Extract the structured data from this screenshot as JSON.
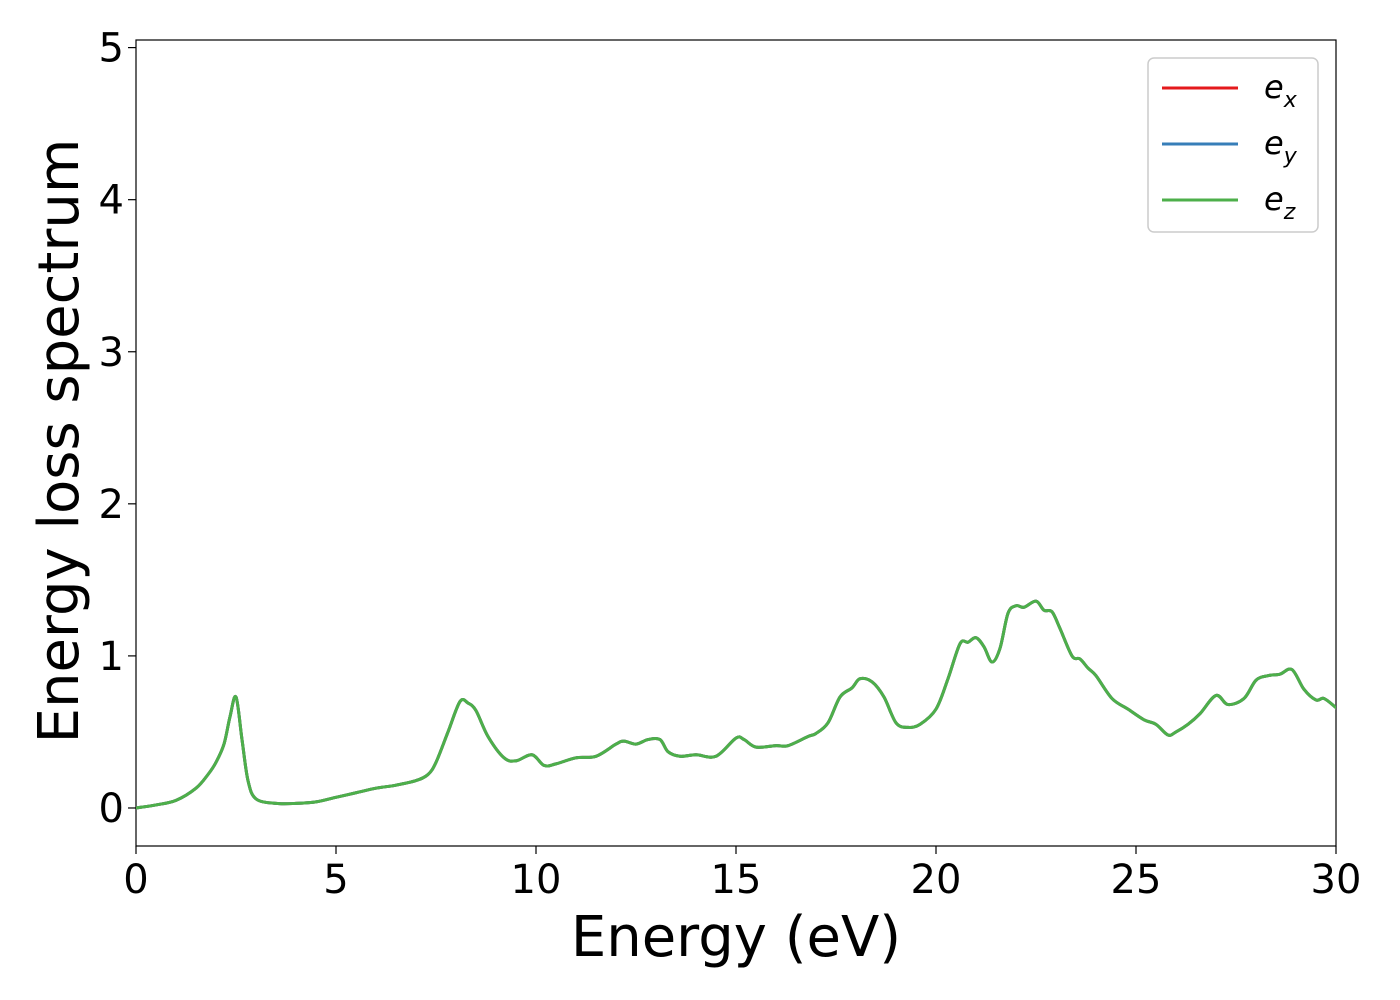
{
  "chart_data": {
    "type": "line",
    "xlabel": "Energy (eV)",
    "ylabel": "Energy loss spectrum",
    "xlim": [
      0,
      30
    ],
    "ylim": [
      -0.25,
      5.05
    ],
    "x_ticks": [
      0,
      5,
      10,
      15,
      20,
      25,
      30
    ],
    "y_ticks": [
      0,
      1,
      2,
      3,
      4,
      5
    ],
    "grid": false,
    "legend_position": "top-right",
    "series": [
      {
        "name": "e_x",
        "label_base": "e",
        "label_sub": "x",
        "color": "#e41a1c",
        "x": [
          0,
          0.5,
          1.0,
          1.5,
          1.8,
          2.0,
          2.2,
          2.35,
          2.5,
          2.65,
          2.8,
          3.0,
          3.5,
          4.0,
          4.5,
          5.0,
          5.5,
          6.0,
          6.5,
          7.0,
          7.3,
          7.5,
          7.8,
          8.1,
          8.3,
          8.5,
          8.8,
          9.2,
          9.5,
          9.9,
          10.2,
          10.5,
          11.0,
          11.5,
          12.0,
          12.2,
          12.5,
          12.8,
          13.1,
          13.3,
          13.6,
          14.0,
          14.5,
          15.0,
          15.2,
          15.5,
          16.0,
          16.3,
          16.8,
          17.0,
          17.3,
          17.6,
          17.9,
          18.1,
          18.4,
          18.7,
          19.0,
          19.3,
          19.6,
          20.0,
          20.3,
          20.6,
          20.8,
          21.0,
          21.2,
          21.4,
          21.6,
          21.8,
          22.0,
          22.2,
          22.5,
          22.7,
          22.9,
          23.1,
          23.4,
          23.6,
          23.8,
          24.0,
          24.4,
          24.8,
          25.2,
          25.5,
          25.8,
          26.0,
          26.3,
          26.6,
          27.0,
          27.3,
          27.7,
          28.0,
          28.3,
          28.6,
          28.9,
          29.2,
          29.5,
          29.7,
          30.0
        ],
        "values": [
          0.0,
          0.02,
          0.05,
          0.13,
          0.22,
          0.3,
          0.42,
          0.6,
          0.73,
          0.45,
          0.18,
          0.06,
          0.03,
          0.03,
          0.04,
          0.07,
          0.1,
          0.13,
          0.15,
          0.18,
          0.22,
          0.3,
          0.5,
          0.7,
          0.69,
          0.64,
          0.47,
          0.33,
          0.31,
          0.35,
          0.28,
          0.29,
          0.33,
          0.34,
          0.42,
          0.44,
          0.42,
          0.45,
          0.45,
          0.37,
          0.34,
          0.35,
          0.34,
          0.46,
          0.45,
          0.4,
          0.41,
          0.41,
          0.47,
          0.49,
          0.56,
          0.73,
          0.79,
          0.85,
          0.83,
          0.73,
          0.56,
          0.53,
          0.55,
          0.65,
          0.85,
          1.08,
          1.09,
          1.12,
          1.06,
          0.96,
          1.05,
          1.28,
          1.33,
          1.32,
          1.36,
          1.3,
          1.29,
          1.18,
          1.0,
          0.98,
          0.92,
          0.87,
          0.72,
          0.65,
          0.58,
          0.55,
          0.48,
          0.5,
          0.55,
          0.62,
          0.74,
          0.68,
          0.72,
          0.84,
          0.87,
          0.88,
          0.91,
          0.78,
          0.71,
          0.72,
          0.66
        ]
      },
      {
        "name": "e_y",
        "label_base": "e",
        "label_sub": "y",
        "color": "#377eb8",
        "x": [
          0,
          0.5,
          1.0,
          1.5,
          1.8,
          2.0,
          2.2,
          2.35,
          2.5,
          2.65,
          2.8,
          3.0,
          3.5,
          4.0,
          4.5,
          5.0,
          5.5,
          6.0,
          6.5,
          7.0,
          7.3,
          7.5,
          7.8,
          8.1,
          8.3,
          8.5,
          8.8,
          9.2,
          9.5,
          9.9,
          10.2,
          10.5,
          11.0,
          11.5,
          12.0,
          12.2,
          12.5,
          12.8,
          13.1,
          13.3,
          13.6,
          14.0,
          14.5,
          15.0,
          15.2,
          15.5,
          16.0,
          16.3,
          16.8,
          17.0,
          17.3,
          17.6,
          17.9,
          18.1,
          18.4,
          18.7,
          19.0,
          19.3,
          19.6,
          20.0,
          20.3,
          20.6,
          20.8,
          21.0,
          21.2,
          21.4,
          21.6,
          21.8,
          22.0,
          22.2,
          22.5,
          22.7,
          22.9,
          23.1,
          23.4,
          23.6,
          23.8,
          24.0,
          24.4,
          24.8,
          25.2,
          25.5,
          25.8,
          26.0,
          26.3,
          26.6,
          27.0,
          27.3,
          27.7,
          28.0,
          28.3,
          28.6,
          28.9,
          29.2,
          29.5,
          29.7,
          30.0
        ],
        "values": [
          0.0,
          0.02,
          0.05,
          0.13,
          0.22,
          0.3,
          0.42,
          0.6,
          0.73,
          0.45,
          0.18,
          0.06,
          0.03,
          0.03,
          0.04,
          0.07,
          0.1,
          0.13,
          0.15,
          0.18,
          0.22,
          0.3,
          0.5,
          0.7,
          0.69,
          0.64,
          0.47,
          0.33,
          0.31,
          0.35,
          0.28,
          0.29,
          0.33,
          0.34,
          0.42,
          0.44,
          0.42,
          0.45,
          0.45,
          0.37,
          0.34,
          0.35,
          0.34,
          0.46,
          0.45,
          0.4,
          0.41,
          0.41,
          0.47,
          0.49,
          0.56,
          0.73,
          0.79,
          0.85,
          0.83,
          0.73,
          0.56,
          0.53,
          0.55,
          0.65,
          0.85,
          1.08,
          1.09,
          1.12,
          1.06,
          0.96,
          1.05,
          1.28,
          1.33,
          1.32,
          1.36,
          1.3,
          1.29,
          1.18,
          1.0,
          0.98,
          0.92,
          0.87,
          0.72,
          0.65,
          0.58,
          0.55,
          0.48,
          0.5,
          0.55,
          0.62,
          0.74,
          0.68,
          0.72,
          0.84,
          0.87,
          0.88,
          0.91,
          0.78,
          0.71,
          0.72,
          0.66
        ]
      },
      {
        "name": "e_z",
        "label_base": "e",
        "label_sub": "z",
        "color": "#4daf4a",
        "x": [
          0,
          0.5,
          1.0,
          1.5,
          1.8,
          2.0,
          2.2,
          2.35,
          2.5,
          2.65,
          2.8,
          3.0,
          3.5,
          4.0,
          4.5,
          5.0,
          5.5,
          6.0,
          6.5,
          7.0,
          7.3,
          7.5,
          7.8,
          8.1,
          8.3,
          8.5,
          8.8,
          9.2,
          9.5,
          9.9,
          10.2,
          10.5,
          11.0,
          11.5,
          12.0,
          12.2,
          12.5,
          12.8,
          13.1,
          13.3,
          13.6,
          14.0,
          14.5,
          15.0,
          15.2,
          15.5,
          16.0,
          16.3,
          16.8,
          17.0,
          17.3,
          17.6,
          17.9,
          18.1,
          18.4,
          18.7,
          19.0,
          19.3,
          19.6,
          20.0,
          20.3,
          20.6,
          20.8,
          21.0,
          21.2,
          21.4,
          21.6,
          21.8,
          22.0,
          22.2,
          22.5,
          22.7,
          22.9,
          23.1,
          23.4,
          23.6,
          23.8,
          24.0,
          24.4,
          24.8,
          25.2,
          25.5,
          25.8,
          26.0,
          26.3,
          26.6,
          27.0,
          27.3,
          27.7,
          28.0,
          28.3,
          28.6,
          28.9,
          29.2,
          29.5,
          29.7,
          30.0
        ],
        "values": [
          0.0,
          0.02,
          0.05,
          0.13,
          0.22,
          0.3,
          0.42,
          0.6,
          0.73,
          0.45,
          0.18,
          0.06,
          0.03,
          0.03,
          0.04,
          0.07,
          0.1,
          0.13,
          0.15,
          0.18,
          0.22,
          0.3,
          0.5,
          0.7,
          0.69,
          0.64,
          0.47,
          0.33,
          0.31,
          0.35,
          0.28,
          0.29,
          0.33,
          0.34,
          0.42,
          0.44,
          0.42,
          0.45,
          0.45,
          0.37,
          0.34,
          0.35,
          0.34,
          0.46,
          0.45,
          0.4,
          0.41,
          0.41,
          0.47,
          0.49,
          0.56,
          0.73,
          0.79,
          0.85,
          0.83,
          0.73,
          0.56,
          0.53,
          0.55,
          0.65,
          0.85,
          1.08,
          1.09,
          1.12,
          1.06,
          0.96,
          1.05,
          1.28,
          1.33,
          1.32,
          1.36,
          1.3,
          1.29,
          1.18,
          1.0,
          0.98,
          0.92,
          0.87,
          0.72,
          0.65,
          0.58,
          0.55,
          0.48,
          0.5,
          0.55,
          0.62,
          0.74,
          0.68,
          0.72,
          0.84,
          0.87,
          0.88,
          0.91,
          0.78,
          0.71,
          0.72,
          0.66
        ]
      }
    ]
  }
}
